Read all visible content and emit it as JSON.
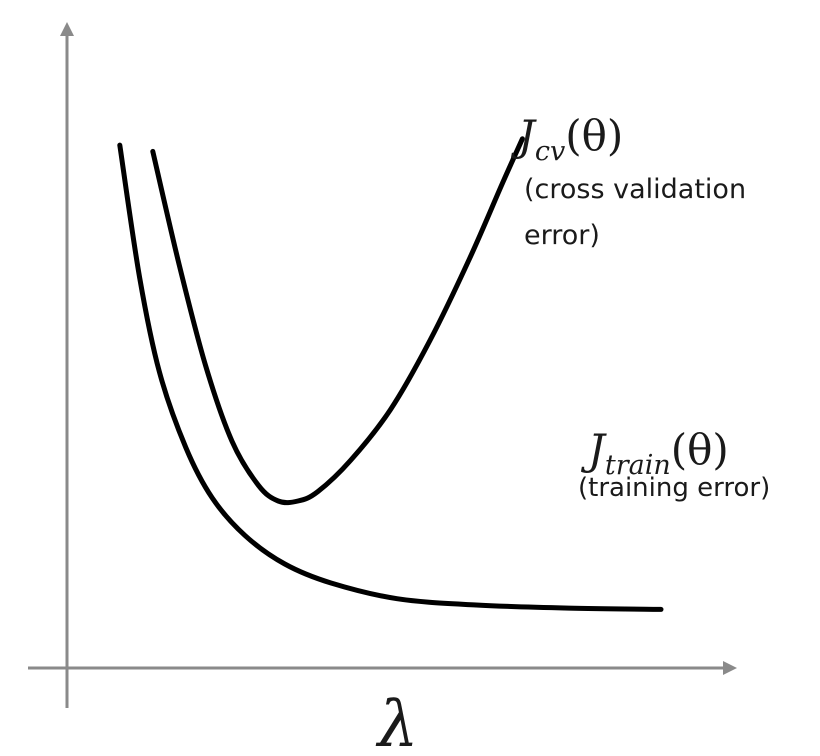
{
  "chart_data": {
    "type": "line",
    "title": "",
    "xlabel": "λ",
    "ylabel": "",
    "grid": false,
    "legend": "none",
    "xlim": [
      0,
      1
    ],
    "ylim": [
      0,
      1
    ],
    "series": [
      {
        "name": "",
        "label_math": {
          "base": "J",
          "sub": "cv",
          "arg": "(θ)"
        },
        "label_note": [
          "(cross validation",
          "error)"
        ],
        "color": "#000000",
        "x": [
          0.13,
          0.17,
          0.21,
          0.25,
          0.29,
          0.32,
          0.35,
          0.38,
          0.43,
          0.49,
          0.55,
          0.61,
          0.66,
          0.69
        ],
        "y": [
          0.82,
          0.64,
          0.48,
          0.36,
          0.29,
          0.265,
          0.265,
          0.28,
          0.33,
          0.41,
          0.52,
          0.65,
          0.77,
          0.84
        ]
      },
      {
        "name": "",
        "label_math": {
          "base": "J",
          "sub": "train",
          "arg": "(θ)"
        },
        "label_note": [
          "(training error)"
        ],
        "color": "#000000",
        "x": [
          0.08,
          0.11,
          0.14,
          0.18,
          0.22,
          0.27,
          0.33,
          0.4,
          0.5,
          0.62,
          0.76,
          0.9
        ],
        "y": [
          0.83,
          0.62,
          0.47,
          0.35,
          0.27,
          0.21,
          0.165,
          0.135,
          0.11,
          0.1,
          0.095,
          0.093
        ]
      }
    ]
  }
}
